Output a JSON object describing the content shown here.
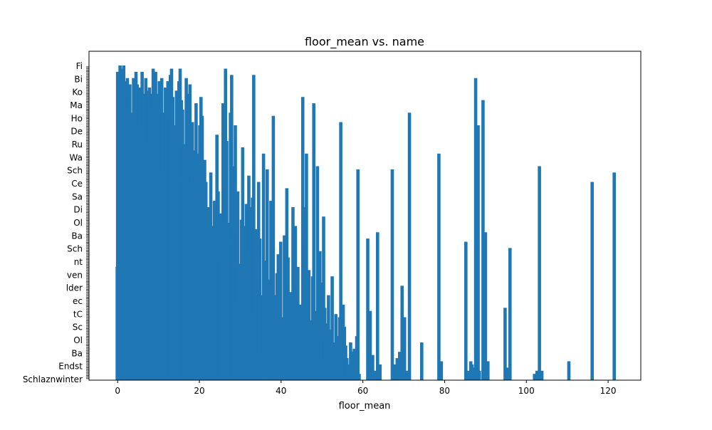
{
  "chart_data": {
    "type": "bar",
    "title": "floor_mean vs. name",
    "xlabel": "floor_mean",
    "ylabel": "",
    "xlim": [
      -7,
      128
    ],
    "xticks": [
      0,
      20,
      40,
      60,
      80,
      100,
      120
    ],
    "xtick_labels": [
      "0",
      "20",
      "40",
      "60",
      "80",
      "100",
      "120"
    ],
    "bar_width": 0.8,
    "ylim": [
      0,
      1
    ],
    "color": "#1f77b4",
    "grid": false,
    "legend": "none",
    "y_tick_labels_visible": [
      "Schlaznwinter",
      "Endst",
      "Ba",
      "Ol",
      "Sc",
      "tC",
      "ec",
      "lder",
      "ven",
      "nt",
      "Sch",
      "Ba",
      "Ol",
      "Di",
      "Sa",
      "Ce",
      "Sch",
      "Wa",
      "Ru",
      "De",
      "Ho",
      "Ma",
      "Ko",
      "Bi",
      "Fi"
    ],
    "bars": [
      [
        -0.1,
        0.36
      ],
      [
        0.0,
        0.98
      ],
      [
        0.3,
        0.97
      ],
      [
        0.6,
        1.0
      ],
      [
        0.9,
        0.99
      ],
      [
        1.2,
        0.97
      ],
      [
        1.5,
        1.0
      ],
      [
        1.8,
        0.95
      ],
      [
        2.1,
        0.92
      ],
      [
        2.4,
        0.96
      ],
      [
        2.7,
        0.9
      ],
      [
        3.0,
        0.94
      ],
      [
        3.3,
        0.85
      ],
      [
        3.6,
        0.78
      ],
      [
        3.9,
        0.96
      ],
      [
        4.2,
        0.72
      ],
      [
        4.5,
        0.98
      ],
      [
        4.8,
        0.94
      ],
      [
        5.1,
        0.92
      ],
      [
        5.4,
        0.93
      ],
      [
        5.7,
        0.8
      ],
      [
        6.0,
        0.98
      ],
      [
        6.3,
        0.91
      ],
      [
        6.6,
        0.76
      ],
      [
        6.9,
        0.96
      ],
      [
        7.2,
        0.85
      ],
      [
        7.5,
        0.92
      ],
      [
        7.8,
        0.93
      ],
      [
        8.1,
        0.86
      ],
      [
        8.4,
        0.91
      ],
      [
        8.7,
        0.99
      ],
      [
        9.0,
        0.97
      ],
      [
        9.3,
        0.98
      ],
      [
        9.6,
        0.8
      ],
      [
        9.9,
        0.91
      ],
      [
        10.2,
        0.95
      ],
      [
        10.5,
        0.7
      ],
      [
        10.8,
        0.96
      ],
      [
        11.1,
        0.85
      ],
      [
        11.4,
        0.67
      ],
      [
        11.7,
        0.93
      ],
      [
        12.0,
        0.88
      ],
      [
        12.3,
        0.95
      ],
      [
        12.6,
        0.83
      ],
      [
        12.9,
        0.97
      ],
      [
        13.2,
        0.99
      ],
      [
        13.5,
        0.9
      ],
      [
        13.8,
        0.77
      ],
      [
        14.1,
        0.81
      ],
      [
        14.4,
        0.92
      ],
      [
        14.7,
        0.64
      ],
      [
        15.0,
        0.95
      ],
      [
        15.3,
        0.99
      ],
      [
        15.6,
        0.89
      ],
      [
        15.9,
        0.86
      ],
      [
        16.2,
        0.75
      ],
      [
        16.5,
        0.68
      ],
      [
        16.8,
        0.96
      ],
      [
        17.1,
        0.76
      ],
      [
        17.4,
        0.91
      ],
      [
        17.7,
        0.94
      ],
      [
        18.0,
        0.65
      ],
      [
        18.3,
        0.82
      ],
      [
        18.6,
        0.62
      ],
      [
        18.9,
        0.73
      ],
      [
        19.2,
        0.88
      ],
      [
        19.5,
        0.58
      ],
      [
        19.8,
        0.72
      ],
      [
        20.1,
        0.81
      ],
      [
        20.4,
        0.9
      ],
      [
        20.7,
        0.84
      ],
      [
        21.0,
        0.51
      ],
      [
        21.3,
        0.7
      ],
      [
        21.6,
        0.63
      ],
      [
        21.9,
        0.44
      ],
      [
        22.2,
        0.55
      ],
      [
        22.5,
        0.39
      ],
      [
        22.8,
        0.66
      ],
      [
        23.1,
        0.49
      ],
      [
        23.4,
        0.22
      ],
      [
        23.7,
        0.57
      ],
      [
        24.0,
        0.42
      ],
      [
        24.3,
        0.78
      ],
      [
        24.6,
        0.6
      ],
      [
        24.9,
        0.38
      ],
      [
        25.2,
        0.53
      ],
      [
        25.5,
        0.45
      ],
      [
        25.8,
        0.88
      ],
      [
        26.1,
        0.62
      ],
      [
        26.4,
        0.99
      ],
      [
        26.7,
        0.76
      ],
      [
        27.0,
        0.5
      ],
      [
        27.3,
        0.43
      ],
      [
        27.6,
        0.85
      ],
      [
        27.9,
        0.97
      ],
      [
        28.2,
        0.68
      ],
      [
        28.5,
        0.54
      ],
      [
        28.8,
        0.81
      ],
      [
        29.1,
        0.46
      ],
      [
        29.4,
        0.6
      ],
      [
        29.7,
        0.37
      ],
      [
        30.0,
        0.24
      ],
      [
        30.3,
        0.51
      ],
      [
        30.6,
        0.74
      ],
      [
        30.9,
        0.49
      ],
      [
        31.2,
        0.33
      ],
      [
        31.5,
        0.56
      ],
      [
        31.8,
        0.42
      ],
      [
        32.1,
        0.65
      ],
      [
        32.4,
        0.55
      ],
      [
        32.7,
        0.4
      ],
      [
        33.0,
        0.58
      ],
      [
        33.3,
        0.97
      ],
      [
        33.6,
        0.3
      ],
      [
        33.9,
        0.48
      ],
      [
        34.2,
        0.2
      ],
      [
        34.5,
        0.63
      ],
      [
        34.8,
        0.45
      ],
      [
        35.1,
        0.09
      ],
      [
        35.4,
        0.27
      ],
      [
        35.7,
        0.72
      ],
      [
        36.0,
        0.0
      ],
      [
        36.3,
        0.38
      ],
      [
        36.6,
        0.67
      ],
      [
        36.9,
        0.16
      ],
      [
        37.2,
        0.32
      ],
      [
        37.5,
        0.57
      ],
      [
        37.8,
        0.42
      ],
      [
        38.1,
        0.84
      ],
      [
        38.4,
        0.14
      ],
      [
        38.7,
        0.27
      ],
      [
        39.0,
        0.34
      ],
      [
        39.3,
        0.4
      ],
      [
        39.6,
        0.12
      ],
      [
        39.9,
        0.44
      ],
      [
        40.2,
        0.03
      ],
      [
        40.5,
        0.2
      ],
      [
        40.8,
        0.46
      ],
      [
        41.1,
        0.11
      ],
      [
        41.4,
        0.61
      ],
      [
        41.7,
        0.39
      ],
      [
        42.0,
        0.02
      ],
      [
        42.3,
        0.28
      ],
      [
        42.6,
        0.07
      ],
      [
        42.9,
        0.55
      ],
      [
        43.2,
        0.13
      ],
      [
        43.5,
        0.49
      ],
      [
        43.8,
        0.19
      ],
      [
        44.1,
        0.36
      ],
      [
        44.4,
        0.06
      ],
      [
        44.7,
        0.24
      ],
      [
        45.0,
        0.15
      ],
      [
        45.3,
        0.9
      ],
      [
        45.6,
        0.44
      ],
      [
        45.9,
        0.55
      ],
      [
        46.2,
        0.72
      ],
      [
        46.5,
        0.1
      ],
      [
        46.8,
        0.35
      ],
      [
        47.1,
        0.19
      ],
      [
        47.4,
        0.05
      ],
      [
        47.7,
        0.33
      ],
      [
        48.0,
        0.88
      ],
      [
        48.3,
        0.02
      ],
      [
        48.6,
        0.22
      ],
      [
        48.9,
        0.68
      ],
      [
        49.2,
        0.08
      ],
      [
        49.5,
        0.41
      ],
      [
        49.8,
        0.13
      ],
      [
        50.1,
        0.31
      ],
      [
        50.4,
        0.52
      ],
      [
        50.7,
        0.23
      ],
      [
        51.0,
        0.06
      ],
      [
        51.3,
        0.18
      ],
      [
        51.6,
        0.27
      ],
      [
        51.9,
        0.09
      ],
      [
        52.2,
        0.16
      ],
      [
        52.5,
        0.33
      ],
      [
        52.8,
        0.04
      ],
      [
        53.1,
        0.12
      ],
      [
        53.4,
        0.21
      ],
      [
        53.7,
        0.1
      ],
      [
        54.0,
        0.14
      ],
      [
        54.3,
        0.2
      ],
      [
        54.6,
        0.82
      ],
      [
        54.9,
        0.08
      ],
      [
        55.2,
        0.24
      ],
      [
        55.5,
        0.17
      ],
      [
        55.8,
        0.11
      ],
      [
        56.1,
        0.07
      ],
      [
        56.4,
        0.05
      ],
      [
        56.7,
        0.03
      ],
      [
        57.0,
        0.12
      ],
      [
        57.3,
        0.09
      ],
      [
        57.6,
        0.06
      ],
      [
        57.9,
        0.1
      ],
      [
        58.2,
        0.04
      ],
      [
        58.5,
        0.14
      ],
      [
        58.8,
        0.67
      ],
      [
        59.1,
        0.02
      ],
      [
        61.2,
        0.45
      ],
      [
        61.8,
        0.22
      ],
      [
        62.4,
        0.08
      ],
      [
        63.0,
        0.03
      ],
      [
        63.6,
        0.47
      ],
      [
        64.2,
        0.05
      ],
      [
        67.2,
        0.67
      ],
      [
        67.8,
        0.05
      ],
      [
        68.4,
        0.07
      ],
      [
        69.0,
        0.09
      ],
      [
        69.6,
        0.3
      ],
      [
        70.2,
        0.2
      ],
      [
        70.8,
        0.03
      ],
      [
        71.4,
        0.85
      ],
      [
        74.4,
        0.12
      ],
      [
        78.6,
        0.72
      ],
      [
        79.2,
        0.06
      ],
      [
        85.2,
        0.44
      ],
      [
        85.8,
        0.03
      ],
      [
        86.4,
        0.06
      ],
      [
        86.7,
        0.05
      ],
      [
        87.0,
        0.04
      ],
      [
        87.6,
        0.96
      ],
      [
        88.2,
        0.81
      ],
      [
        88.5,
        0.03
      ],
      [
        89.4,
        0.89
      ],
      [
        90.0,
        0.47
      ],
      [
        90.6,
        0.06
      ],
      [
        94.8,
        0.23
      ],
      [
        95.4,
        0.04
      ],
      [
        96.0,
        0.42
      ],
      [
        102.0,
        0.02
      ],
      [
        102.6,
        0.03
      ],
      [
        103.2,
        0.68
      ],
      [
        103.8,
        0.03
      ],
      [
        110.4,
        0.06
      ],
      [
        116.1,
        0.63
      ],
      [
        121.5,
        0.66
      ]
    ]
  }
}
